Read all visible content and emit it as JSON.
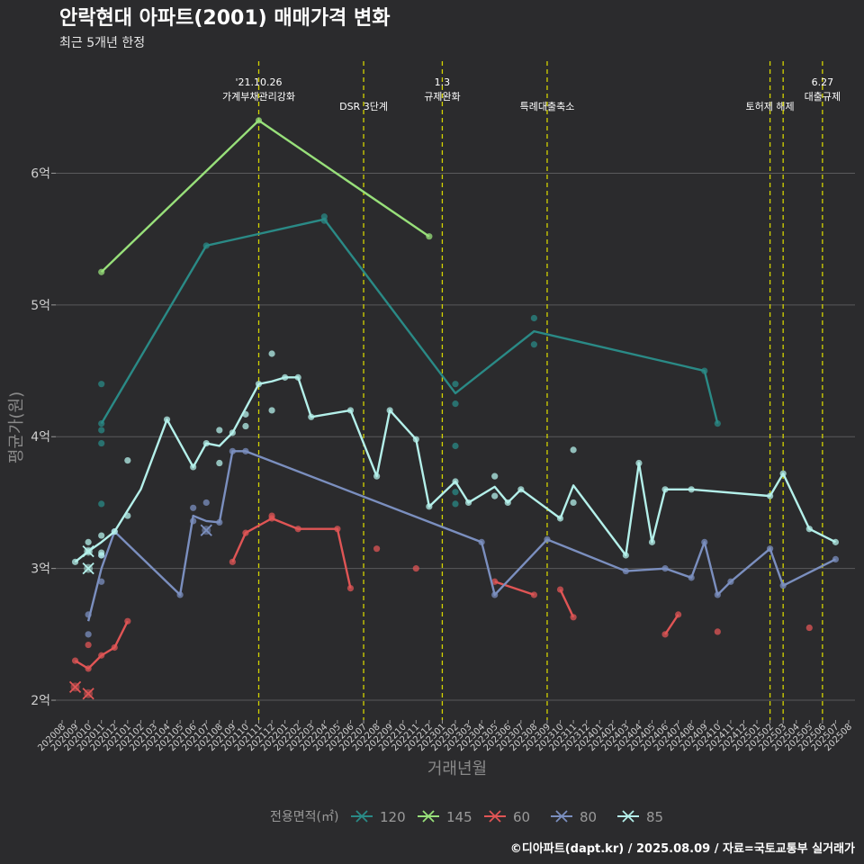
{
  "chart_data": {
    "type": "line",
    "title": "안락현대 아파트(2001) 매매가격 변화",
    "subtitle": "최근 5개년 한정",
    "xlabel": "거래년월",
    "ylabel": "평균가(원)",
    "ylim": [
      1.85,
      6.85
    ],
    "yticks": [
      {
        "value": 2,
        "label": "2억"
      },
      {
        "value": 3,
        "label": "3억"
      },
      {
        "value": 4,
        "label": "4억"
      },
      {
        "value": 5,
        "label": "5억"
      },
      {
        "value": 6,
        "label": "6억"
      }
    ],
    "x_categories": [
      "202008",
      "202009",
      "202010",
      "202011",
      "202012",
      "202101",
      "202102",
      "202103",
      "202104",
      "202105",
      "202106",
      "202107",
      "202108",
      "202109",
      "202110",
      "202111",
      "202112",
      "202201",
      "202202",
      "202203",
      "202204",
      "202205",
      "202206",
      "202207",
      "202208",
      "202209",
      "202210",
      "202211",
      "202212",
      "202301",
      "202302",
      "202303",
      "202304",
      "202305",
      "202306",
      "202307",
      "202308",
      "202309",
      "202310",
      "202311",
      "202312",
      "202401",
      "202402",
      "202403",
      "202404",
      "202405",
      "202406",
      "202407",
      "202408",
      "202409",
      "202410",
      "202411",
      "202412",
      "202501",
      "202502",
      "202503",
      "202504",
      "202505",
      "202506",
      "202507",
      "202508"
    ],
    "grid": true,
    "legend_title": "전용면적(㎡)",
    "legend_position": "bottom",
    "events": [
      {
        "month": "202111",
        "label_lines": [
          "'21.10.26",
          "가계부채관리강화"
        ]
      },
      {
        "month": "202207",
        "label_lines": [
          "DSR 3단계"
        ]
      },
      {
        "month": "202301",
        "label_lines": [
          "1.3",
          "규제완화"
        ]
      },
      {
        "month": "202309",
        "label_lines": [
          "특례대출축소"
        ]
      },
      {
        "month": "202502",
        "label_lines": [
          "토허제 해제"
        ]
      },
      {
        "month": "202503",
        "label_lines": []
      },
      {
        "month": "202506",
        "label_lines": [
          "6.27",
          "대출규제"
        ]
      }
    ],
    "series": [
      {
        "name": "120",
        "color": "#2a8a86",
        "line": [
          [
            "202011",
            4.1
          ],
          [
            "202107",
            5.45
          ],
          [
            "202204",
            5.65
          ],
          [
            "202302",
            4.33
          ],
          [
            "202308",
            4.8
          ],
          [
            "202409",
            4.5
          ],
          [
            "202410",
            4.1
          ]
        ],
        "points": [
          [
            "202011",
            4.4
          ],
          [
            "202011",
            4.1
          ],
          [
            "202011",
            4.05
          ],
          [
            "202011",
            3.95
          ],
          [
            "202011",
            3.49
          ],
          [
            "202107",
            5.45
          ],
          [
            "202204",
            5.67
          ],
          [
            "202204",
            5.64
          ],
          [
            "202302",
            4.4
          ],
          [
            "202302",
            4.25
          ],
          [
            "202302",
            3.93
          ],
          [
            "202302",
            3.58
          ],
          [
            "202302",
            3.49
          ],
          [
            "202308",
            4.9
          ],
          [
            "202308",
            4.7
          ],
          [
            "202409",
            4.5
          ],
          [
            "202410",
            4.1
          ]
        ],
        "crosses": []
      },
      {
        "name": "145",
        "color": "#98e07a",
        "line": [
          [
            "202011",
            5.25
          ],
          [
            "202111",
            6.4
          ],
          [
            "202212",
            5.52
          ]
        ],
        "points": [
          [
            "202011",
            5.25
          ],
          [
            "202111",
            6.4
          ],
          [
            "202212",
            5.52
          ]
        ],
        "crosses": []
      },
      {
        "name": "60",
        "color": "#e05555",
        "line": [
          [
            "202009",
            2.3
          ],
          [
            "202010",
            2.24
          ],
          [
            "202011",
            2.34
          ],
          [
            "202012",
            2.4
          ],
          [
            "202101",
            2.6
          ],
          [
            "BREAK",
            0
          ],
          [
            "202109",
            3.05
          ],
          [
            "202110",
            3.27
          ],
          [
            "202112",
            3.38
          ],
          [
            "202202",
            3.3
          ],
          [
            "202205",
            3.3
          ],
          [
            "202206",
            2.85
          ],
          [
            "BREAK",
            0
          ],
          [
            "202305",
            2.9
          ],
          [
            "202308",
            2.8
          ],
          [
            "BREAK",
            0
          ],
          [
            "202310",
            2.84
          ],
          [
            "202311",
            2.63
          ],
          [
            "BREAK",
            0
          ],
          [
            "202406",
            2.5
          ],
          [
            "202407",
            2.65
          ]
        ],
        "points": [
          [
            "202009",
            2.3
          ],
          [
            "202010",
            2.24
          ],
          [
            "202010",
            2.42
          ],
          [
            "202011",
            2.34
          ],
          [
            "202012",
            2.4
          ],
          [
            "202101",
            2.6
          ],
          [
            "202109",
            3.05
          ],
          [
            "202110",
            3.27
          ],
          [
            "202112",
            3.38
          ],
          [
            "202112",
            3.4
          ],
          [
            "202202",
            3.3
          ],
          [
            "202205",
            3.3
          ],
          [
            "202206",
            2.85
          ],
          [
            "202208",
            3.15
          ],
          [
            "202211",
            3.0
          ],
          [
            "202305",
            2.9
          ],
          [
            "202308",
            2.8
          ],
          [
            "202310",
            2.84
          ],
          [
            "202311",
            2.63
          ],
          [
            "202406",
            2.5
          ],
          [
            "202407",
            2.65
          ],
          [
            "202410",
            2.52
          ],
          [
            "202505",
            2.55
          ]
        ],
        "crosses": [
          [
            "202009",
            2.1
          ],
          [
            "202010",
            2.05
          ]
        ]
      },
      {
        "name": "80",
        "color": "#7b8fbf",
        "line": [
          [
            "202010",
            2.6
          ],
          [
            "202011",
            3.0
          ],
          [
            "202012",
            3.28
          ],
          [
            "202105",
            2.8
          ],
          [
            "202106",
            3.4
          ],
          [
            "202107",
            3.36
          ],
          [
            "202108",
            3.35
          ],
          [
            "202109",
            3.89
          ],
          [
            "202110",
            3.89
          ],
          [
            "202304",
            3.2
          ],
          [
            "202305",
            2.8
          ],
          [
            "202309",
            3.22
          ],
          [
            "202403",
            2.98
          ],
          [
            "202406",
            3.0
          ],
          [
            "202408",
            2.93
          ],
          [
            "202409",
            3.2
          ],
          [
            "202410",
            2.8
          ],
          [
            "202411",
            2.9
          ],
          [
            "202502",
            3.15
          ],
          [
            "202503",
            2.87
          ],
          [
            "202507",
            3.07
          ]
        ],
        "points": [
          [
            "202010",
            2.65
          ],
          [
            "202010",
            2.5
          ],
          [
            "202011",
            2.9
          ],
          [
            "202011",
            3.1
          ],
          [
            "202012",
            3.28
          ],
          [
            "202105",
            2.8
          ],
          [
            "202106",
            3.46
          ],
          [
            "202106",
            3.36
          ],
          [
            "202107",
            3.5
          ],
          [
            "202108",
            3.35
          ],
          [
            "202109",
            3.89
          ],
          [
            "202110",
            3.89
          ],
          [
            "202304",
            3.2
          ],
          [
            "202305",
            2.8
          ],
          [
            "202309",
            3.22
          ],
          [
            "202403",
            2.98
          ],
          [
            "202406",
            3.0
          ],
          [
            "202408",
            2.93
          ],
          [
            "202409",
            3.2
          ],
          [
            "202410",
            2.8
          ],
          [
            "202411",
            2.9
          ],
          [
            "202502",
            3.15
          ],
          [
            "202503",
            2.87
          ],
          [
            "202507",
            3.07
          ]
        ],
        "crosses": [
          [
            "202107",
            3.29
          ]
        ]
      },
      {
        "name": "85",
        "color": "#b4f0ea",
        "line": [
          [
            "202009",
            3.05
          ],
          [
            "202010",
            3.13
          ],
          [
            "202011",
            3.2
          ],
          [
            "202012",
            3.28
          ],
          [
            "202102",
            3.6
          ],
          [
            "202104",
            4.13
          ],
          [
            "202106",
            3.77
          ],
          [
            "202107",
            3.95
          ],
          [
            "202108",
            3.93
          ],
          [
            "202109",
            4.03
          ],
          [
            "202111",
            4.4
          ],
          [
            "202112",
            4.42
          ],
          [
            "202201",
            4.45
          ],
          [
            "202202",
            4.45
          ],
          [
            "202203",
            4.15
          ],
          [
            "202206",
            4.2
          ],
          [
            "202208",
            3.7
          ],
          [
            "202209",
            4.2
          ],
          [
            "202211",
            3.98
          ],
          [
            "202212",
            3.47
          ],
          [
            "202302",
            3.66
          ],
          [
            "202303",
            3.5
          ],
          [
            "202305",
            3.62
          ],
          [
            "202306",
            3.5
          ],
          [
            "202307",
            3.6
          ],
          [
            "202310",
            3.38
          ],
          [
            "202311",
            3.63
          ],
          [
            "202403",
            3.1
          ],
          [
            "202404",
            3.8
          ],
          [
            "202405",
            3.2
          ],
          [
            "202406",
            3.6
          ],
          [
            "202408",
            3.6
          ],
          [
            "202502",
            3.55
          ],
          [
            "202503",
            3.72
          ],
          [
            "202505",
            3.3
          ],
          [
            "202507",
            3.2
          ]
        ],
        "points": [
          [
            "202009",
            3.05
          ],
          [
            "202010",
            3.13
          ],
          [
            "202010",
            3.2
          ],
          [
            "202011",
            3.25
          ],
          [
            "202011",
            3.12
          ],
          [
            "202011",
            3.1
          ],
          [
            "202012",
            3.28
          ],
          [
            "202101",
            3.82
          ],
          [
            "202101",
            3.4
          ],
          [
            "202104",
            4.13
          ],
          [
            "202106",
            3.77
          ],
          [
            "202107",
            3.95
          ],
          [
            "202108",
            4.05
          ],
          [
            "202108",
            3.8
          ],
          [
            "202109",
            4.03
          ],
          [
            "202110",
            4.17
          ],
          [
            "202110",
            4.08
          ],
          [
            "202111",
            4.4
          ],
          [
            "202112",
            4.63
          ],
          [
            "202112",
            4.2
          ],
          [
            "202201",
            4.45
          ],
          [
            "202202",
            4.45
          ],
          [
            "202203",
            4.15
          ],
          [
            "202206",
            4.2
          ],
          [
            "202208",
            3.7
          ],
          [
            "202209",
            4.2
          ],
          [
            "202211",
            3.98
          ],
          [
            "202212",
            3.47
          ],
          [
            "202302",
            3.66
          ],
          [
            "202303",
            3.5
          ],
          [
            "202305",
            3.7
          ],
          [
            "202305",
            3.55
          ],
          [
            "202306",
            3.5
          ],
          [
            "202307",
            3.6
          ],
          [
            "202310",
            3.38
          ],
          [
            "202311",
            3.9
          ],
          [
            "202311",
            3.5
          ],
          [
            "202403",
            3.1
          ],
          [
            "202404",
            3.8
          ],
          [
            "202405",
            3.2
          ],
          [
            "202406",
            3.6
          ],
          [
            "202408",
            3.6
          ],
          [
            "202502",
            3.55
          ],
          [
            "202503",
            3.72
          ],
          [
            "202505",
            3.3
          ],
          [
            "202507",
            3.2
          ]
        ],
        "crosses": [
          [
            "202010",
            3.13
          ],
          [
            "202010",
            3.0
          ]
        ]
      }
    ]
  },
  "footer": {
    "credit": "©디아파트(dapt.kr) / 2025.08.09 / 자료=국토교통부 실거래가"
  }
}
